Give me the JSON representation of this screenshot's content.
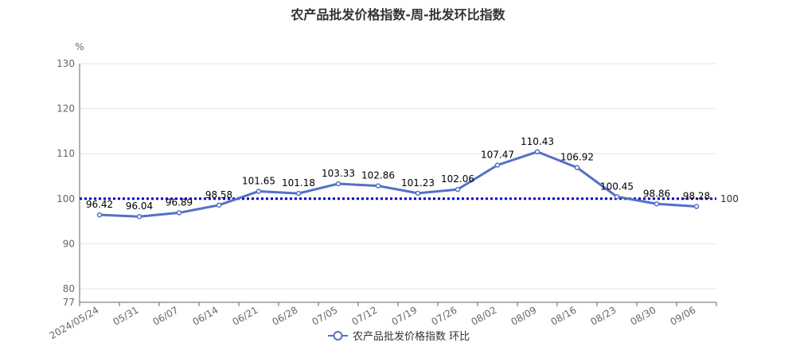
{
  "chart_data": {
    "type": "line",
    "title": "农产品批发价格指数-周-批发环比指数",
    "y_unit": "%",
    "ylim": [
      77,
      130
    ],
    "y_ticks": [
      77,
      80,
      90,
      100,
      110,
      120,
      130
    ],
    "x_labels": [
      "2024/05/24",
      "05/31",
      "06/07",
      "06/14",
      "06/21",
      "06/28",
      "07/05",
      "07/12",
      "07/19",
      "07/26",
      "08/02",
      "08/09",
      "08/16",
      "08/23",
      "08/30",
      "09/06"
    ],
    "series": [
      {
        "name": "农产品批发价格指数 环比",
        "values": [
          96.42,
          96.04,
          96.89,
          98.58,
          101.65,
          101.18,
          103.33,
          102.86,
          101.23,
          102.06,
          107.47,
          110.43,
          106.92,
          100.45,
          98.86,
          98.28
        ]
      }
    ],
    "reference_line": {
      "value": 100,
      "label": "100"
    },
    "legend_position": "bottom",
    "grid": true
  },
  "colors": {
    "series": "#5470c6",
    "reference": "#0000cc",
    "grid": "#e6e6e6",
    "axis": "#666666"
  }
}
